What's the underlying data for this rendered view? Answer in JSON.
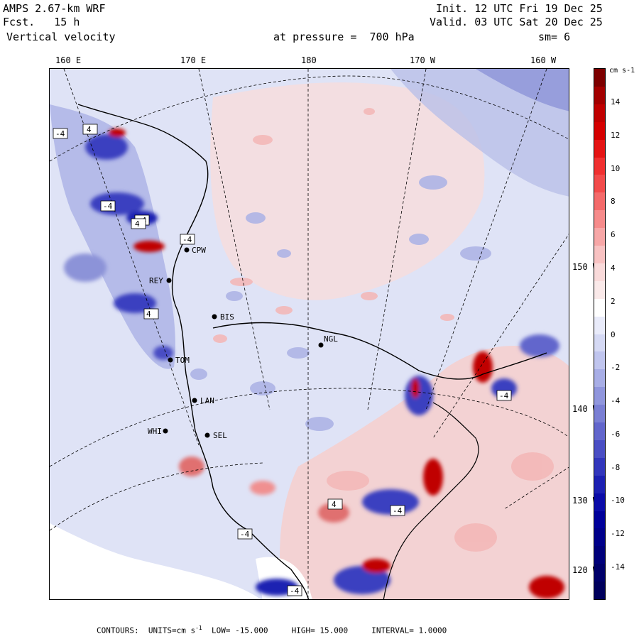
{
  "header": {
    "model": "AMPS 2.67-km WRF",
    "forecast_label": "Fcst.",
    "forecast_value": "15 h",
    "field": "Vertical velocity",
    "init_label": "Init.",
    "init_time": "12 UTC Fri 19 Dec 25",
    "valid_label": "Valid.",
    "valid_time": "03 UTC Sat 20 Dec 25",
    "pressure_text": "at pressure =",
    "pressure_value": "700 hPa",
    "smoothing": "sm= 6"
  },
  "top_axis_labels": [
    "160 E",
    "170 E",
    "180",
    "170 W",
    "160 W"
  ],
  "right_axis_labels": [
    "150 W",
    "140 W",
    "130 W",
    "120 W"
  ],
  "stations": [
    "CPW",
    "REY",
    "BIS",
    "NGL",
    "TOM",
    "LAN",
    "WHI",
    "SEL"
  ],
  "extrema_labels": [
    "-4",
    "4",
    "-4",
    "-4",
    "4",
    "4",
    "-4",
    "-4",
    "4",
    "-4",
    "-4",
    "-4"
  ],
  "colorbar": {
    "unit": "cm s-1",
    "labels": [
      "14",
      "12",
      "10",
      "8",
      "6",
      "4",
      "2",
      "0",
      "-2",
      "-4",
      "-6",
      "-8",
      "-10",
      "-12",
      "-14"
    ],
    "colors": [
      "#7d0000",
      "#a30000",
      "#c00000",
      "#d50000",
      "#e51414",
      "#f03030",
      "#f24b4b",
      "#f46a6a",
      "#f68b8b",
      "#f7a7a7",
      "#f8c2c2",
      "#f9dada",
      "#fae9e9",
      "#ffffff",
      "#e9ebfa",
      "#d5d9f4",
      "#c0c5ee",
      "#a8aee6",
      "#9096dd",
      "#7a7fd4",
      "#6266cc",
      "#4a4ec4",
      "#3236bc",
      "#1c20b2",
      "#0b0ca8",
      "#00009a",
      "#00008a",
      "#00007a",
      "#00006a",
      "#00005c"
    ]
  },
  "footer": {
    "contours_label": "CONTOURS:",
    "units_label": "UNITS=cm s",
    "units_exp": "-1",
    "low_label": "LOW=",
    "low_value": "-15.000",
    "high_label": "HIGH=",
    "high_value": "15.000",
    "interval_label": "INTERVAL=",
    "interval_value": "1.0000"
  }
}
